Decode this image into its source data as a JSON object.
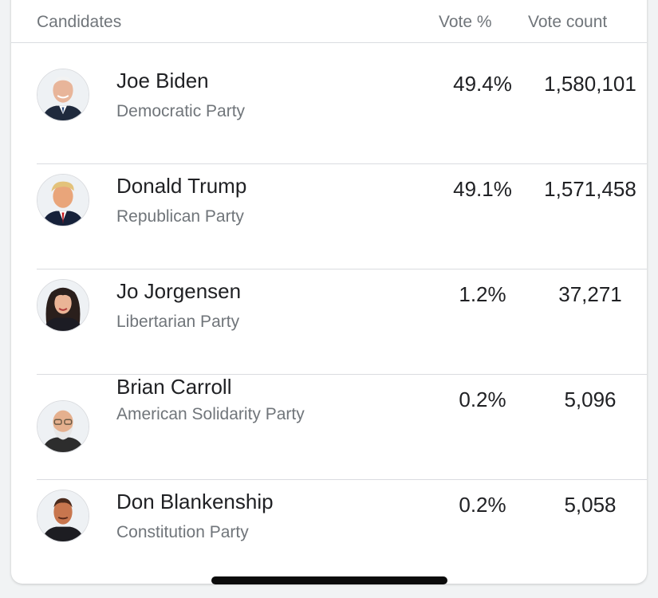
{
  "table": {
    "headers": {
      "candidates": "Candidates",
      "vote_pct": "Vote %",
      "vote_count": "Vote count"
    },
    "rows": [
      {
        "name": "Joe Biden",
        "party": "Democratic Party",
        "vote_pct": "49.4%",
        "vote_count": "1,580,101",
        "avatar": "candidate-photo-icon"
      },
      {
        "name": "Donald Trump",
        "party": "Republican Party",
        "vote_pct": "49.1%",
        "vote_count": "1,571,458",
        "avatar": "candidate-photo-icon"
      },
      {
        "name": "Jo Jorgensen",
        "party": "Libertarian Party",
        "vote_pct": "1.2%",
        "vote_count": "37,271",
        "avatar": "candidate-photo-icon"
      },
      {
        "name": "Brian Carroll",
        "party": "American Solidarity Party",
        "vote_pct": "0.2%",
        "vote_count": "5,096",
        "avatar": "candidate-photo-icon"
      },
      {
        "name": "Don Blankenship",
        "party": "Constitution Party",
        "vote_pct": "0.2%",
        "vote_count": "5,058",
        "avatar": "candidate-photo-icon"
      }
    ]
  },
  "colors": {
    "text_primary": "#202124",
    "text_secondary": "#70757a",
    "divider": "#dadce0"
  }
}
